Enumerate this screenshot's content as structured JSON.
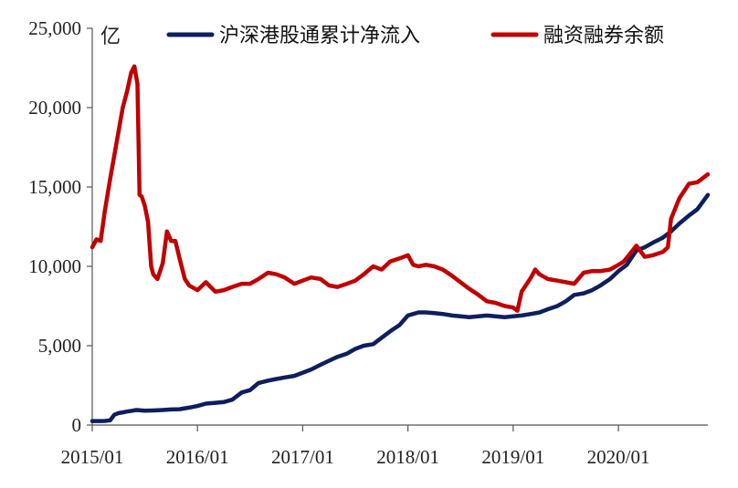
{
  "chart_data": {
    "type": "line",
    "title": "",
    "ylabel": "亿",
    "xlabel": "",
    "ylim": [
      0,
      25000
    ],
    "yticks": [
      0,
      5000,
      10000,
      15000,
      20000,
      25000
    ],
    "ytick_labels": [
      "0",
      "5,000",
      "10,000",
      "15,000",
      "20,000",
      "25,000"
    ],
    "xlim": [
      2015.0,
      2020.85
    ],
    "xticks": [
      2015.0,
      2016.0,
      2017.0,
      2018.0,
      2019.0,
      2020.0
    ],
    "xtick_labels": [
      "2015/01",
      "2016/01",
      "2017/01",
      "2018/01",
      "2019/01",
      "2020/01"
    ],
    "grid": false,
    "legend_position": "top",
    "series": [
      {
        "name": "沪深港股通累计净流入",
        "color": "#0d1f5c",
        "x": [
          2015.0,
          2015.08,
          2015.12,
          2015.17,
          2015.21,
          2015.25,
          2015.29,
          2015.33,
          2015.38,
          2015.42,
          2015.5,
          2015.58,
          2015.67,
          2015.75,
          2015.83,
          2015.92,
          2016.0,
          2016.08,
          2016.17,
          2016.25,
          2016.33,
          2016.42,
          2016.5,
          2016.58,
          2016.67,
          2016.75,
          2016.83,
          2016.92,
          2017.0,
          2017.08,
          2017.17,
          2017.25,
          2017.33,
          2017.42,
          2017.5,
          2017.58,
          2017.67,
          2017.75,
          2017.83,
          2017.92,
          2018.0,
          2018.05,
          2018.1,
          2018.17,
          2018.25,
          2018.33,
          2018.42,
          2018.5,
          2018.58,
          2018.67,
          2018.75,
          2018.83,
          2018.92,
          2019.0,
          2019.08,
          2019.17,
          2019.25,
          2019.33,
          2019.42,
          2019.5,
          2019.58,
          2019.67,
          2019.75,
          2019.83,
          2019.92,
          2020.0,
          2020.08,
          2020.17,
          2020.25,
          2020.33,
          2020.42,
          2020.5,
          2020.58,
          2020.67,
          2020.75,
          2020.85
        ],
        "values": [
          250,
          250,
          260,
          300,
          650,
          750,
          800,
          850,
          900,
          950,
          900,
          920,
          950,
          980,
          1000,
          1100,
          1200,
          1350,
          1400,
          1450,
          1600,
          2050,
          2200,
          2650,
          2800,
          2900,
          3000,
          3100,
          3300,
          3500,
          3800,
          4050,
          4300,
          4500,
          4800,
          5000,
          5100,
          5500,
          5900,
          6300,
          6900,
          7000,
          7100,
          7100,
          7050,
          7000,
          6900,
          6850,
          6800,
          6850,
          6900,
          6850,
          6800,
          6850,
          6900,
          7000,
          7100,
          7300,
          7500,
          7800,
          8200,
          8300,
          8500,
          8800,
          9200,
          9700,
          10100,
          11000,
          11200,
          11500,
          11800,
          12200,
          12700,
          13200,
          13600,
          14500
        ]
      },
      {
        "name": "融资融券余额",
        "color": "#c00000",
        "x": [
          2015.0,
          2015.04,
          2015.08,
          2015.12,
          2015.17,
          2015.21,
          2015.25,
          2015.29,
          2015.33,
          2015.37,
          2015.4,
          2015.43,
          2015.45,
          2015.47,
          2015.5,
          2015.53,
          2015.56,
          2015.58,
          2015.62,
          2015.67,
          2015.71,
          2015.75,
          2015.79,
          2015.83,
          2015.88,
          2015.92,
          2016.0,
          2016.08,
          2016.17,
          2016.25,
          2016.33,
          2016.42,
          2016.5,
          2016.58,
          2016.67,
          2016.75,
          2016.83,
          2016.92,
          2017.0,
          2017.08,
          2017.17,
          2017.25,
          2017.33,
          2017.42,
          2017.5,
          2017.58,
          2017.67,
          2017.75,
          2017.83,
          2017.92,
          2018.0,
          2018.05,
          2018.1,
          2018.17,
          2018.25,
          2018.33,
          2018.42,
          2018.5,
          2018.58,
          2018.67,
          2018.75,
          2018.83,
          2018.92,
          2019.0,
          2019.04,
          2019.08,
          2019.12,
          2019.17,
          2019.21,
          2019.25,
          2019.33,
          2019.42,
          2019.5,
          2019.58,
          2019.67,
          2019.75,
          2019.83,
          2019.92,
          2020.0,
          2020.05,
          2020.1,
          2020.17,
          2020.25,
          2020.33,
          2020.42,
          2020.47,
          2020.5,
          2020.58,
          2020.67,
          2020.75,
          2020.85
        ],
        "values": [
          11200,
          11700,
          11600,
          13500,
          15500,
          17000,
          18500,
          20000,
          21000,
          22200,
          22600,
          21500,
          14500,
          14400,
          13800,
          12800,
          10000,
          9500,
          9200,
          10200,
          12200,
          11600,
          11600,
          10500,
          9200,
          8800,
          8500,
          9000,
          8400,
          8500,
          8700,
          8900,
          8900,
          9200,
          9600,
          9500,
          9300,
          8900,
          9100,
          9300,
          9200,
          8800,
          8700,
          8900,
          9100,
          9500,
          10000,
          9800,
          10300,
          10500,
          10700,
          10100,
          10000,
          10100,
          10000,
          9800,
          9400,
          9000,
          8600,
          8200,
          7800,
          7700,
          7500,
          7400,
          7200,
          8400,
          8800,
          9300,
          9800,
          9500,
          9200,
          9100,
          9000,
          8900,
          9600,
          9700,
          9700,
          9800,
          10100,
          10300,
          10700,
          11300,
          10600,
          10700,
          10900,
          11200,
          13000,
          14300,
          15200,
          15300,
          15800
        ]
      }
    ]
  }
}
